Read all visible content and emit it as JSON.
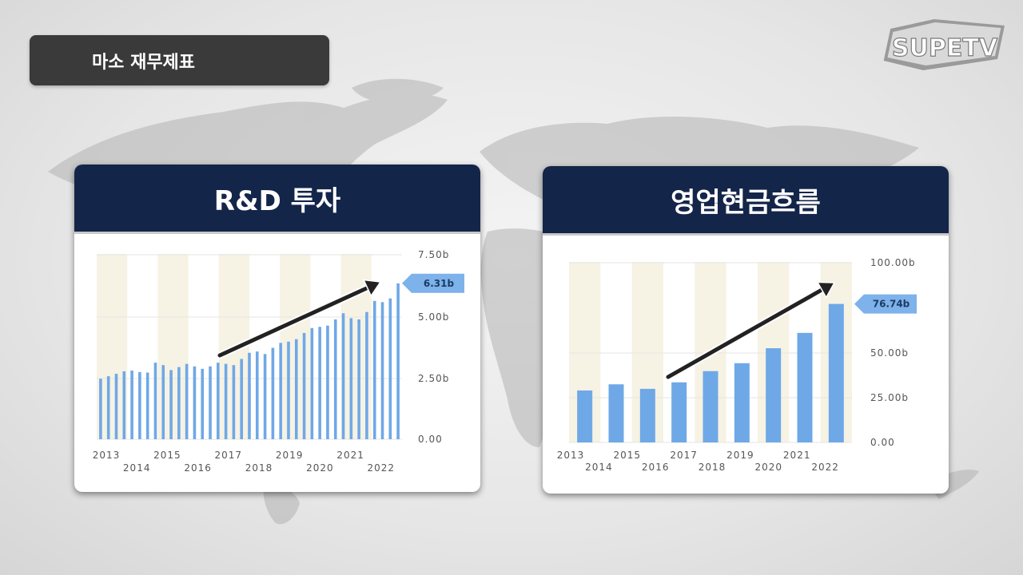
{
  "slide_title": "마소 재무제표",
  "logo_text": "SUPETV",
  "colors": {
    "header": "#14254a",
    "bar": "#6fa8e6",
    "band": "#f6f2e4",
    "arrow": "#222222",
    "callout": "#7db2ea"
  },
  "chart_data": [
    {
      "type": "bar",
      "title": "R&D 투자",
      "x_ticks": [
        "2013",
        "2014",
        "2015",
        "2016",
        "2017",
        "2018",
        "2019",
        "2020",
        "2021",
        "2022"
      ],
      "y_ticks": [
        "7.50b",
        "5.00b",
        "2.50b",
        "0.00"
      ],
      "ylim": [
        0,
        7.5
      ],
      "values": [
        2.45,
        2.55,
        2.65,
        2.75,
        2.78,
        2.72,
        2.7,
        3.1,
        3.0,
        2.8,
        2.92,
        3.05,
        2.95,
        2.85,
        2.95,
        3.1,
        3.05,
        3.0,
        3.25,
        3.5,
        3.55,
        3.45,
        3.7,
        3.9,
        3.95,
        4.05,
        4.3,
        4.5,
        4.55,
        4.6,
        4.85,
        5.1,
        4.9,
        4.85,
        5.15,
        5.6,
        5.55,
        5.7,
        6.31
      ],
      "last_value_label": "6.31b",
      "trend_arrow": true
    },
    {
      "type": "bar",
      "title": "영업현금흐름",
      "x_ticks": [
        "2013",
        "2014",
        "2015",
        "2016",
        "2017",
        "2018",
        "2019",
        "2020",
        "2021",
        "2022"
      ],
      "y_ticks": [
        "100.00b",
        "50.00b",
        "25.00b",
        "0.00"
      ],
      "ylim": [
        0,
        100
      ],
      "values": [
        28.8,
        32.2,
        29.7,
        33.3,
        39.5,
        43.9,
        52.2,
        60.7,
        76.74
      ],
      "last_value_label": "76.74b",
      "trend_arrow": true
    }
  ]
}
